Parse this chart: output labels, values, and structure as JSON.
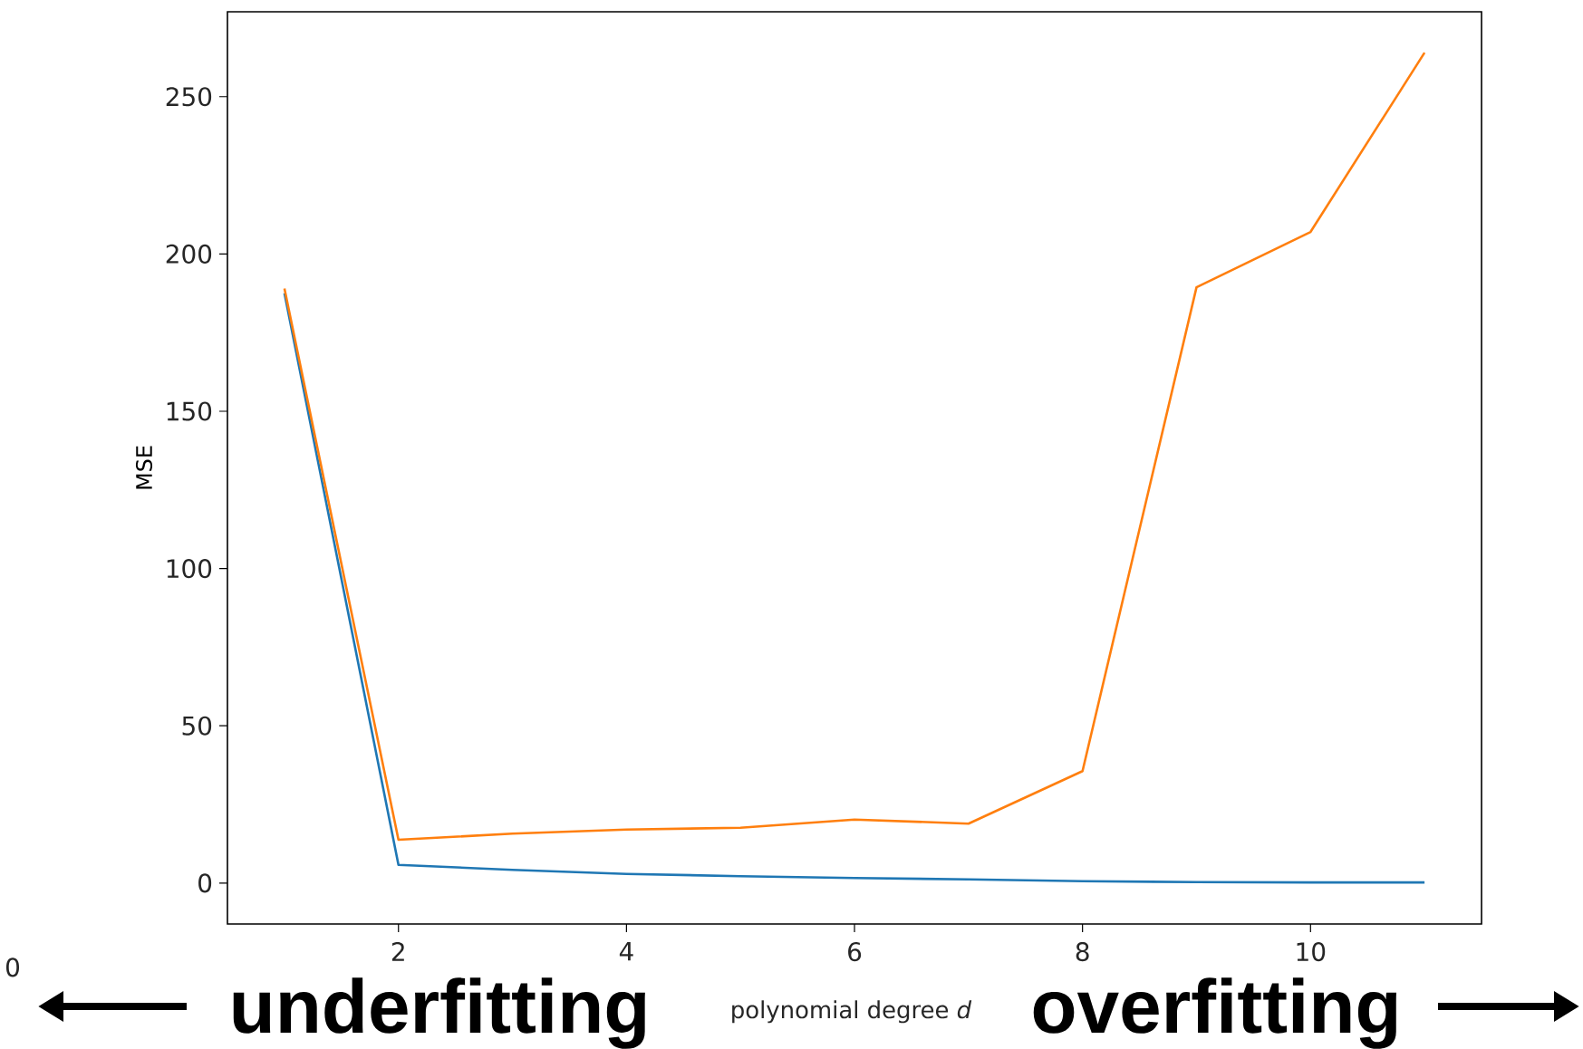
{
  "chart_data": {
    "type": "line",
    "xlabel": "polynomial degree *d*",
    "ylabel": "MSE",
    "x": [
      1,
      2,
      3,
      4,
      5,
      6,
      7,
      8,
      9,
      10,
      11
    ],
    "series": [
      {
        "color": "#1f77b4",
        "values": [
          187.5,
          5.8,
          4.2,
          2.9,
          2.2,
          1.6,
          1.2,
          0.6,
          0.3,
          0.2,
          0.2
        ]
      },
      {
        "color": "#ff7f0e",
        "values": [
          189,
          13.8,
          15.7,
          17,
          17.6,
          20.2,
          18.9,
          35.6,
          189.4,
          207,
          264
        ]
      }
    ],
    "xlim": [
      0.5,
      11.5
    ],
    "ylim": [
      -13,
      277
    ],
    "xticks": [
      2,
      4,
      6,
      8,
      10
    ],
    "yticks": [
      0,
      50,
      100,
      150,
      200,
      250
    ],
    "annotations": [
      "0",
      "underfitting",
      "overfitting"
    ]
  }
}
